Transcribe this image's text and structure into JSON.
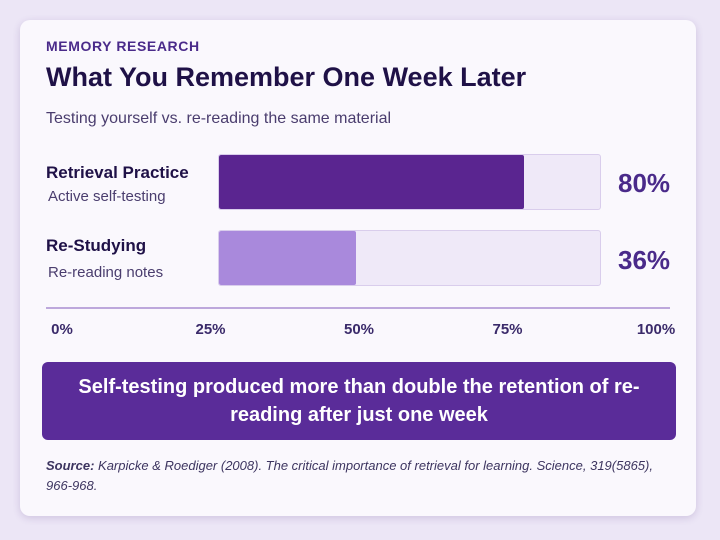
{
  "header": {
    "eyebrow": "MEMORY RESEARCH",
    "title": "What You Remember One Week Later",
    "subtitle": "Testing yourself vs. re-reading the same material"
  },
  "rows": [
    {
      "label": "Retrieval Practice",
      "sublabel": "Active self-testing",
      "value_label": "80%"
    },
    {
      "label": "Re-Studying",
      "sublabel": "Re-reading notes",
      "value_label": "36%"
    }
  ],
  "chart_data": {
    "type": "bar",
    "orientation": "horizontal",
    "categories": [
      "Retrieval Practice",
      "Re-Studying"
    ],
    "values": [
      80,
      36
    ],
    "colors": [
      "#5a2590",
      "#a989dc"
    ],
    "xlim": [
      0,
      100
    ],
    "x_ticks": [
      "0%",
      "25%",
      "50%",
      "75%",
      "100%"
    ],
    "title": "What You Remember One Week Later",
    "subtitle": "Testing yourself vs. re-reading the same material"
  },
  "callout": {
    "text": "Self-testing produced more than double the retention of re-reading after just one week"
  },
  "source": {
    "label": "Source:",
    "text": "Karpicke & Roediger (2008). The critical importance of retrieval for learning. Science, 319(5865), 966-968."
  }
}
